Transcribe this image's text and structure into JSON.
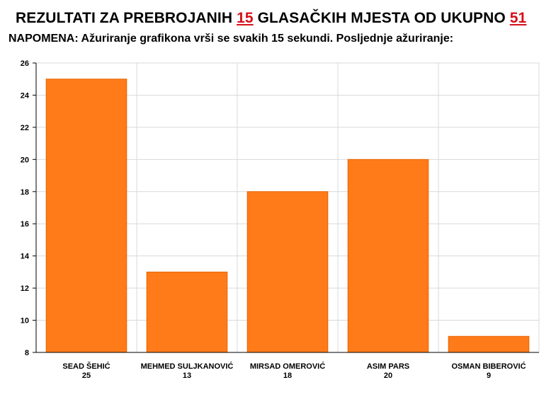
{
  "header": {
    "title_prefix": "REZULTATI ZA PREBROJANIH",
    "counted": "15",
    "title_middle": "GLASAČKIH MJESTA OD UKUPNO",
    "total": "51",
    "note": "NAPOMENA: Ažuriranje grafikona vrši se svakih 15 sekundi. Posljednje ažuriranje:"
  },
  "colors": {
    "bar": "#ff7b1a",
    "bar_stroke": "#e86400",
    "accent": "#d6101a",
    "grid": "#d9d9d9"
  },
  "chart_data": {
    "type": "bar",
    "categories": [
      "SEAD ŠEHIĆ",
      "MEHMED SULJKANOVIĆ",
      "MIRSAD OMEROVIĆ",
      "ASIM PARS",
      "OSMAN BIBEROVIĆ"
    ],
    "values": [
      25,
      13,
      18,
      20,
      9
    ],
    "value_labels": [
      "25",
      "13",
      "18",
      "20",
      "9"
    ],
    "ylim": [
      8,
      26
    ],
    "yticks": [
      "8",
      "10",
      "12",
      "14",
      "16",
      "18",
      "20",
      "22",
      "24",
      "26"
    ],
    "grid": true,
    "legend": "none"
  }
}
